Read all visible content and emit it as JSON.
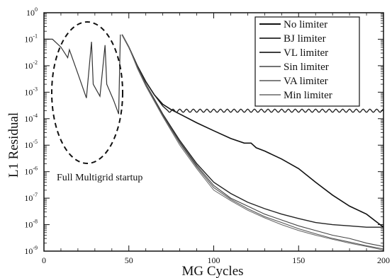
{
  "chart_data": {
    "type": "line",
    "title": "",
    "xlabel": "MG Cycles",
    "ylabel": "L1 Residual",
    "xlim": [
      0,
      200
    ],
    "ylim_exponent": [
      -9,
      0
    ],
    "yscale": "log",
    "x_ticks": [
      "0",
      "50",
      "100",
      "150",
      "200"
    ],
    "y_ticks": [
      {
        "base": "10",
        "exp": "0"
      },
      {
        "base": "10",
        "exp": "-1"
      },
      {
        "base": "10",
        "exp": "-2"
      },
      {
        "base": "10",
        "exp": "-3"
      },
      {
        "base": "10",
        "exp": "-4"
      },
      {
        "base": "10",
        "exp": "-5"
      },
      {
        "base": "10",
        "exp": "-6"
      },
      {
        "base": "10",
        "exp": "-7"
      },
      {
        "base": "10",
        "exp": "-8"
      },
      {
        "base": "10",
        "exp": "-9"
      }
    ],
    "legend_position": "top-right",
    "annotation": "Full Multigrid startup",
    "startup": {
      "x": [
        0,
        5,
        10,
        14,
        15,
        20,
        25,
        28,
        29,
        33,
        36,
        37,
        41,
        44,
        45
      ],
      "y": [
        0.1,
        0.1,
        0.05,
        0.02,
        0.04,
        0.005,
        0.0006,
        0.08,
        0.002,
        0.0007,
        0.06,
        0.002,
        0.0005,
        0.00015,
        0.15
      ]
    },
    "series": [
      {
        "name": "No limiter",
        "x": [
          46,
          50,
          55,
          60,
          65,
          70,
          75,
          80,
          90,
          100,
          110,
          118,
          122,
          125,
          130,
          140,
          150,
          160,
          170,
          180,
          190,
          200
        ],
        "y": [
          0.15,
          0.05,
          0.01,
          0.0025,
          0.0008,
          0.00035,
          0.00022,
          0.00015,
          7e-05,
          3.5e-05,
          1.8e-05,
          1.2e-05,
          1.2e-05,
          8e-06,
          6e-06,
          3e-06,
          1.3e-06,
          4e-07,
          1.3e-07,
          5e-08,
          2.5e-08,
          8e-09
        ]
      },
      {
        "name": "BJ limiter",
        "x": [
          46,
          50,
          55,
          60,
          65,
          70,
          73,
          200
        ],
        "y": [
          0.15,
          0.05,
          0.01,
          0.0025,
          0.0008,
          0.0003,
          0.0002,
          0.0002
        ]
      },
      {
        "name": "VL limiter",
        "x": [
          46,
          50,
          55,
          60,
          70,
          80,
          90,
          100,
          110,
          120,
          130,
          140,
          150,
          160,
          170,
          180,
          190,
          200
        ],
        "y": [
          0.15,
          0.05,
          0.009,
          0.002,
          0.00015,
          1.5e-05,
          2e-06,
          4e-07,
          1.5e-07,
          7e-08,
          4e-08,
          2.5e-08,
          1.7e-08,
          1.2e-08,
          1e-08,
          9e-09,
          8e-09,
          8e-09
        ]
      },
      {
        "name": "Sin limiter",
        "x": [
          46,
          50,
          55,
          60,
          70,
          80,
          90,
          100,
          110,
          120,
          130,
          140,
          150,
          160,
          170,
          180,
          190,
          200
        ],
        "y": [
          0.15,
          0.05,
          0.009,
          0.002,
          0.00014,
          1.3e-05,
          1.7e-06,
          3e-07,
          1e-07,
          5e-08,
          2.5e-08,
          1.5e-08,
          9e-09,
          6e-09,
          4e-09,
          3e-09,
          2e-09,
          1.5e-09
        ]
      },
      {
        "name": "VA limiter",
        "x": [
          46,
          50,
          55,
          60,
          70,
          80,
          90,
          100,
          110,
          120,
          130,
          140,
          150,
          160,
          170,
          180,
          190,
          200
        ],
        "y": [
          0.15,
          0.05,
          0.009,
          0.0019,
          0.00013,
          1.2e-05,
          1.5e-06,
          2.5e-07,
          9e-08,
          4e-08,
          2e-08,
          1.2e-08,
          7e-09,
          4.5e-09,
          3e-09,
          2.2e-09,
          1.6e-09,
          1.2e-09
        ]
      },
      {
        "name": "Min limiter",
        "x": [
          46,
          50,
          55,
          60,
          70,
          80,
          90,
          100,
          110,
          120,
          130,
          140,
          150,
          160,
          170,
          180,
          190,
          200
        ],
        "y": [
          0.15,
          0.05,
          0.008,
          0.0017,
          0.00012,
          1e-05,
          1.3e-06,
          2e-07,
          8e-08,
          3.5e-08,
          1.8e-08,
          1e-08,
          6e-09,
          4e-09,
          2.8e-09,
          2e-09,
          1.5e-09,
          1.1e-09
        ]
      }
    ]
  }
}
